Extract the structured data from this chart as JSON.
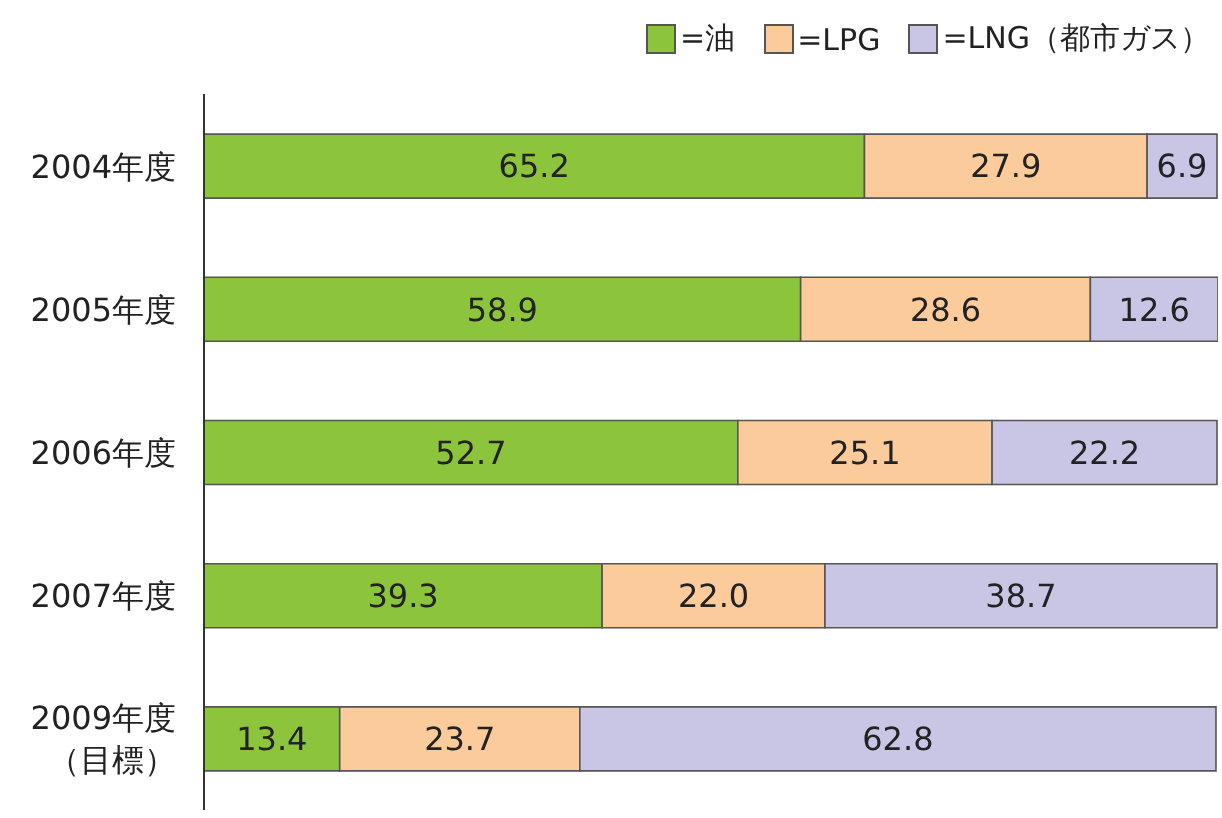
{
  "chart_data": {
    "type": "bar",
    "orientation": "horizontal",
    "stacked": true,
    "legend": "top right",
    "categories": [
      "2004年度",
      "2005年度",
      "2006年度",
      "2007年度",
      "2009年度（目標）"
    ],
    "series": [
      {
        "name": "=油",
        "color": "#8cc43c",
        "values": [
          65.2,
          58.9,
          52.7,
          39.3,
          13.4
        ],
        "value_labels": [
          "65.2",
          "58.9",
          "52.7",
          "39.3",
          "13.4"
        ]
      },
      {
        "name": "=LPG",
        "color": "#fbcb9c",
        "values": [
          27.9,
          28.6,
          25.1,
          22.0,
          23.7
        ],
        "value_labels": [
          "27.9",
          "28.6",
          "25.1",
          "22.0",
          "23.7"
        ]
      },
      {
        "name": "=LNG（都市ガス）",
        "color": "#c9c5e4",
        "values": [
          6.9,
          12.6,
          22.2,
          38.7,
          62.8
        ],
        "value_labels": [
          "6.9",
          "12.6",
          "22.2",
          "38.7",
          "62.8"
        ]
      }
    ]
  }
}
